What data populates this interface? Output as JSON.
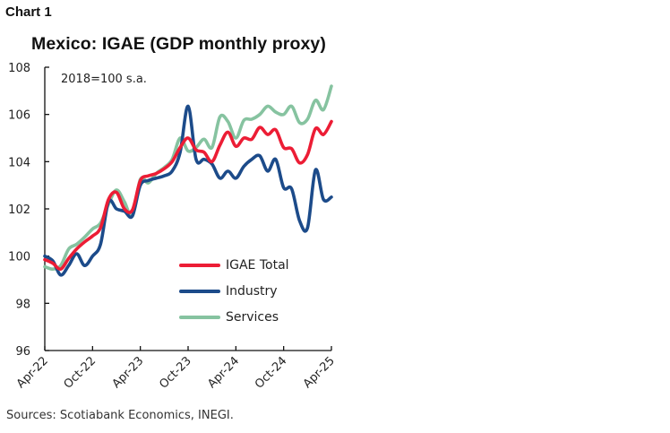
{
  "header": {
    "chart_label": "Chart 1",
    "title": "Mexico: IGAE (GDP monthly proxy)",
    "unit_note": "2018=100 s.a."
  },
  "footer": {
    "source": "Sources: Scotiabank Economics, INEGI."
  },
  "legend": {
    "items": [
      {
        "label": "IGAE Total",
        "color": "#EC1D35"
      },
      {
        "label": "Industry",
        "color": "#1C4B8A"
      },
      {
        "label": "Services",
        "color": "#86C3A0"
      }
    ]
  },
  "chart_data": {
    "type": "line",
    "title": "Mexico: IGAE (GDP monthly proxy)",
    "subtitle": "2018=100 s.a.",
    "xlabel": "",
    "ylabel": "",
    "ylim": [
      96,
      108
    ],
    "yticks": [
      96,
      98,
      100,
      102,
      104,
      106,
      108
    ],
    "xtick_labels": [
      "Apr-22",
      "Oct-22",
      "Apr-23",
      "Oct-23",
      "Apr-24",
      "Oct-24",
      "Apr-25"
    ],
    "grid": false,
    "legend_position": "inside-lower-right",
    "x": [
      "Apr-22",
      "May-22",
      "Jun-22",
      "Jul-22",
      "Aug-22",
      "Sep-22",
      "Oct-22",
      "Nov-22",
      "Dec-22",
      "Jan-23",
      "Feb-23",
      "Mar-23",
      "Apr-23",
      "May-23",
      "Jun-23",
      "Jul-23",
      "Aug-23",
      "Sep-23",
      "Oct-23",
      "Nov-23",
      "Dec-23",
      "Jan-24",
      "Feb-24",
      "Mar-24",
      "Apr-24",
      "May-24",
      "Jun-24",
      "Jul-24",
      "Aug-24",
      "Sep-24",
      "Oct-24",
      "Nov-24",
      "Dec-24",
      "Jan-25",
      "Feb-25",
      "Mar-25",
      "Apr-25"
    ],
    "series": [
      {
        "name": "IGAE Total",
        "color": "#EC1D35",
        "values": [
          99.85,
          99.7,
          99.45,
          99.9,
          100.3,
          100.6,
          100.85,
          101.2,
          102.4,
          102.7,
          102.0,
          101.95,
          103.2,
          103.4,
          103.5,
          103.7,
          104.0,
          104.6,
          105.0,
          104.5,
          104.4,
          104.0,
          104.7,
          105.25,
          104.65,
          105.0,
          104.95,
          105.45,
          105.15,
          105.35,
          104.6,
          104.55,
          103.95,
          104.3,
          105.4,
          105.15,
          105.7
        ]
      },
      {
        "name": "Industry",
        "color": "#1C4B8A",
        "values": [
          100.0,
          99.8,
          99.2,
          99.6,
          100.1,
          99.6,
          100.0,
          100.5,
          102.3,
          102.0,
          101.9,
          101.7,
          103.0,
          103.2,
          103.3,
          103.4,
          103.6,
          104.4,
          106.35,
          104.1,
          104.1,
          103.9,
          103.3,
          103.6,
          103.3,
          103.8,
          104.1,
          104.25,
          103.6,
          104.1,
          102.9,
          102.85,
          101.5,
          101.2,
          103.65,
          102.4,
          102.5
        ]
      },
      {
        "name": "Services",
        "color": "#86C3A0",
        "values": [
          99.55,
          99.45,
          99.6,
          100.3,
          100.5,
          100.8,
          101.15,
          101.4,
          102.2,
          102.8,
          102.3,
          101.7,
          103.25,
          103.1,
          103.5,
          103.75,
          104.1,
          105.0,
          104.45,
          104.6,
          104.95,
          104.6,
          105.9,
          105.7,
          105.0,
          105.75,
          105.8,
          106.0,
          106.35,
          106.1,
          106.0,
          106.35,
          105.65,
          105.8,
          106.6,
          106.2,
          107.2
        ]
      }
    ]
  }
}
